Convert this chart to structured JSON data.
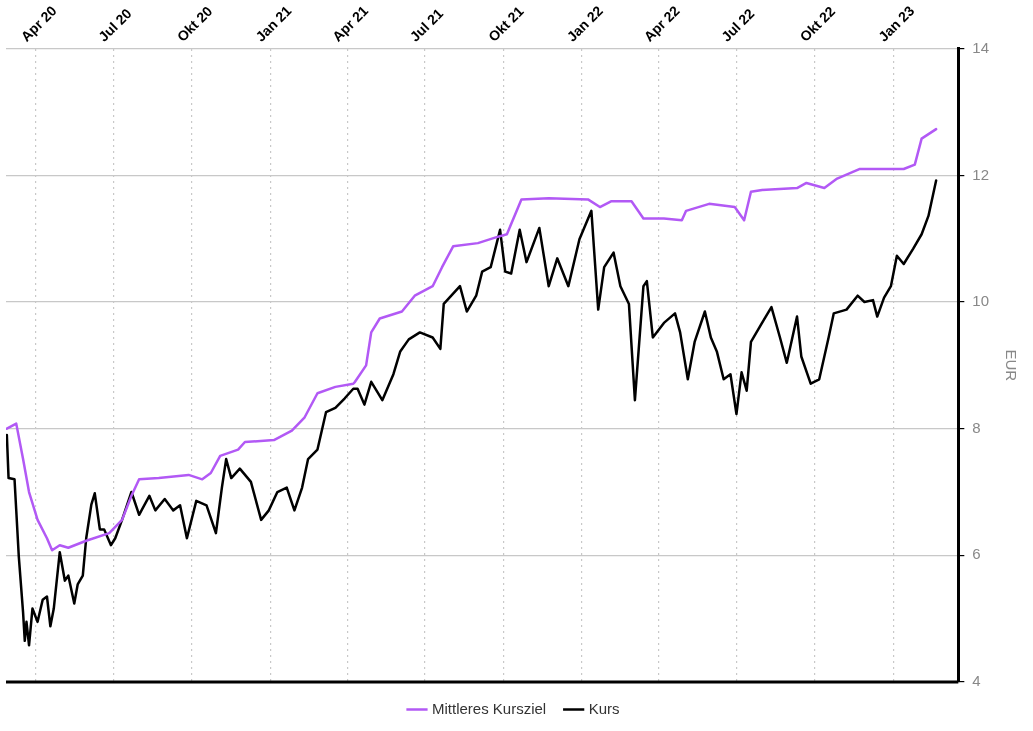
{
  "chart_data": {
    "type": "line",
    "ylabel": "EUR",
    "legend": "bottom",
    "grid": true,
    "marker": "none",
    "line_style": "solid",
    "xlim": [
      "2020-02-26",
      "2023-03-18"
    ],
    "xticks": [
      {
        "value": "2020-04-01",
        "label": "Apr 20"
      },
      {
        "value": "2020-07-01",
        "label": "Jul 20"
      },
      {
        "value": "2020-10-01",
        "label": "Okt 20"
      },
      {
        "value": "2021-01-01",
        "label": "Jan 21"
      },
      {
        "value": "2021-04-01",
        "label": "Apr 21"
      },
      {
        "value": "2021-07-01",
        "label": "Jul 21"
      },
      {
        "value": "2021-10-01",
        "label": "Okt 21"
      },
      {
        "value": "2022-01-01",
        "label": "Jan 22"
      },
      {
        "value": "2022-04-01",
        "label": "Apr 22"
      },
      {
        "value": "2022-07-01",
        "label": "Jul 22"
      },
      {
        "value": "2022-10-01",
        "label": "Okt 22"
      },
      {
        "value": "2023-01-01",
        "label": "Jan 23"
      }
    ],
    "ylim": [
      4,
      14
    ],
    "yticks": [
      4,
      6,
      8,
      10,
      12,
      14
    ],
    "series": [
      {
        "name": "Mittleres Kursziel",
        "color": "#b259f5",
        "x": [
          "2020-02-27",
          "2020-03-09",
          "2020-03-17",
          "2020-03-24",
          "2020-04-03",
          "2020-04-14",
          "2020-04-20",
          "2020-04-29",
          "2020-05-09",
          "2020-05-30",
          "2020-06-26",
          "2020-07-11",
          "2020-07-22",
          "2020-07-31",
          "2020-08-23",
          "2020-09-27",
          "2020-10-13",
          "2020-10-23",
          "2020-11-03",
          "2020-11-24",
          "2020-12-02",
          "2021-01-05",
          "2021-01-26",
          "2021-02-10",
          "2021-02-25",
          "2021-03-18",
          "2021-04-08",
          "2021-04-10",
          "2021-04-23",
          "2021-04-29",
          "2021-05-09",
          "2021-06-04",
          "2021-06-19",
          "2021-07-10",
          "2021-07-21",
          "2021-08-03",
          "2021-09-01",
          "2021-09-22",
          "2021-10-05",
          "2021-10-22",
          "2021-11-23",
          "2022-01-08",
          "2022-01-22",
          "2022-02-04",
          "2022-02-28",
          "2022-03-14",
          "2022-04-07",
          "2022-04-28",
          "2022-05-03",
          "2022-05-30",
          "2022-06-29",
          "2022-07-10",
          "2022-07-18",
          "2022-07-31",
          "2022-09-10",
          "2022-09-21",
          "2022-10-12",
          "2022-10-27",
          "2022-11-22",
          "2023-01-13",
          "2023-01-26",
          "2023-02-03",
          "2023-02-20"
        ],
        "values": [
          8.0,
          8.08,
          7.52,
          7.0,
          6.56,
          6.27,
          6.08,
          6.16,
          6.12,
          6.23,
          6.35,
          6.56,
          6.94,
          7.2,
          7.22,
          7.27,
          7.2,
          7.3,
          7.57,
          7.67,
          7.79,
          7.82,
          7.97,
          8.18,
          8.56,
          8.66,
          8.71,
          8.74,
          9.0,
          9.52,
          9.74,
          9.85,
          10.1,
          10.25,
          10.55,
          10.88,
          10.93,
          11.02,
          11.07,
          11.62,
          11.64,
          11.62,
          11.5,
          11.59,
          11.59,
          11.32,
          11.32,
          11.29,
          11.44,
          11.55,
          11.5,
          11.29,
          11.74,
          11.77,
          11.8,
          11.88,
          11.8,
          11.95,
          12.1,
          12.1,
          12.17,
          12.58,
          12.73
        ]
      },
      {
        "name": "Kurs",
        "color": "#000000",
        "x": [
          "2020-02-27",
          "2020-02-29",
          "2020-03-07",
          "2020-03-12",
          "2020-03-17",
          "2020-03-19",
          "2020-03-21",
          "2020-03-24",
          "2020-03-28",
          "2020-04-03",
          "2020-04-09",
          "2020-04-14",
          "2020-04-18",
          "2020-04-22",
          "2020-04-29",
          "2020-05-05",
          "2020-05-09",
          "2020-05-16",
          "2020-05-20",
          "2020-05-26",
          "2020-05-30",
          "2020-06-05",
          "2020-06-09",
          "2020-06-15",
          "2020-06-20",
          "2020-06-28",
          "2020-07-03",
          "2020-07-11",
          "2020-07-22",
          "2020-07-31",
          "2020-08-12",
          "2020-08-19",
          "2020-08-30",
          "2020-09-09",
          "2020-09-17",
          "2020-09-25",
          "2020-10-06",
          "2020-10-18",
          "2020-10-29",
          "2020-11-05",
          "2020-11-10",
          "2020-11-16",
          "2020-11-26",
          "2020-12-09",
          "2020-12-21",
          "2020-12-30",
          "2021-01-09",
          "2021-01-20",
          "2021-01-29",
          "2021-02-07",
          "2021-02-14",
          "2021-02-25",
          "2021-03-07",
          "2021-03-18",
          "2021-03-29",
          "2021-04-08",
          "2021-04-13",
          "2021-04-21",
          "2021-04-29",
          "2021-05-12",
          "2021-05-25",
          "2021-06-02",
          "2021-06-12",
          "2021-06-25",
          "2021-07-10",
          "2021-07-19",
          "2021-07-23",
          "2021-08-11",
          "2021-08-19",
          "2021-08-30",
          "2021-09-06",
          "2021-09-16",
          "2021-09-27",
          "2021-10-03",
          "2021-10-10",
          "2021-10-20",
          "2021-10-28",
          "2021-11-12",
          "2021-11-23",
          "2021-12-03",
          "2021-12-16",
          "2021-12-29",
          "2022-01-12",
          "2022-01-20",
          "2022-01-27",
          "2022-02-07",
          "2022-02-15",
          "2022-02-25",
          "2022-03-04",
          "2022-03-14",
          "2022-03-18",
          "2022-03-25",
          "2022-04-07",
          "2022-04-20",
          "2022-04-26",
          "2022-05-05",
          "2022-05-13",
          "2022-05-25",
          "2022-06-01",
          "2022-06-08",
          "2022-06-16",
          "2022-06-24",
          "2022-07-01",
          "2022-07-07",
          "2022-07-13",
          "2022-07-18",
          "2022-07-31",
          "2022-08-11",
          "2022-08-21",
          "2022-08-29",
          "2022-09-10",
          "2022-09-15",
          "2022-09-26",
          "2022-10-06",
          "2022-10-17",
          "2022-10-23",
          "2022-11-07",
          "2022-11-20",
          "2022-11-28",
          "2022-12-08",
          "2022-12-13",
          "2022-12-21",
          "2022-12-29",
          "2023-01-05",
          "2023-01-13",
          "2023-01-24",
          "2023-02-03",
          "2023-02-11",
          "2023-02-20"
        ],
        "values": [
          7.9,
          7.22,
          7.2,
          5.98,
          5.1,
          4.65,
          4.95,
          4.58,
          5.16,
          4.95,
          5.3,
          5.35,
          4.88,
          5.16,
          6.05,
          5.6,
          5.68,
          5.24,
          5.54,
          5.68,
          6.27,
          6.8,
          6.98,
          6.41,
          6.41,
          6.16,
          6.27,
          6.56,
          7.0,
          6.64,
          6.94,
          6.71,
          6.89,
          6.71,
          6.79,
          6.27,
          6.86,
          6.79,
          6.35,
          7.07,
          7.52,
          7.22,
          7.37,
          7.16,
          6.56,
          6.71,
          7.0,
          7.07,
          6.71,
          7.07,
          7.52,
          7.67,
          8.26,
          8.33,
          8.48,
          8.63,
          8.63,
          8.38,
          8.74,
          8.45,
          8.86,
          9.22,
          9.41,
          9.52,
          9.44,
          9.26,
          9.97,
          10.25,
          9.85,
          10.1,
          10.48,
          10.55,
          11.14,
          10.48,
          10.45,
          11.14,
          10.63,
          11.17,
          10.25,
          10.69,
          10.25,
          10.99,
          11.44,
          9.88,
          10.55,
          10.78,
          10.25,
          9.97,
          8.45,
          10.25,
          10.33,
          9.44,
          9.67,
          9.82,
          9.52,
          8.78,
          9.37,
          9.85,
          9.44,
          9.22,
          8.78,
          8.86,
          8.23,
          8.89,
          8.6,
          9.37,
          9.67,
          9.92,
          9.44,
          9.04,
          9.77,
          9.14,
          8.71,
          8.78,
          9.44,
          9.82,
          9.88,
          10.1,
          10.0,
          10.03,
          9.77,
          10.07,
          10.25,
          10.73,
          10.6,
          10.84,
          11.07,
          11.36,
          11.92
        ]
      }
    ]
  }
}
